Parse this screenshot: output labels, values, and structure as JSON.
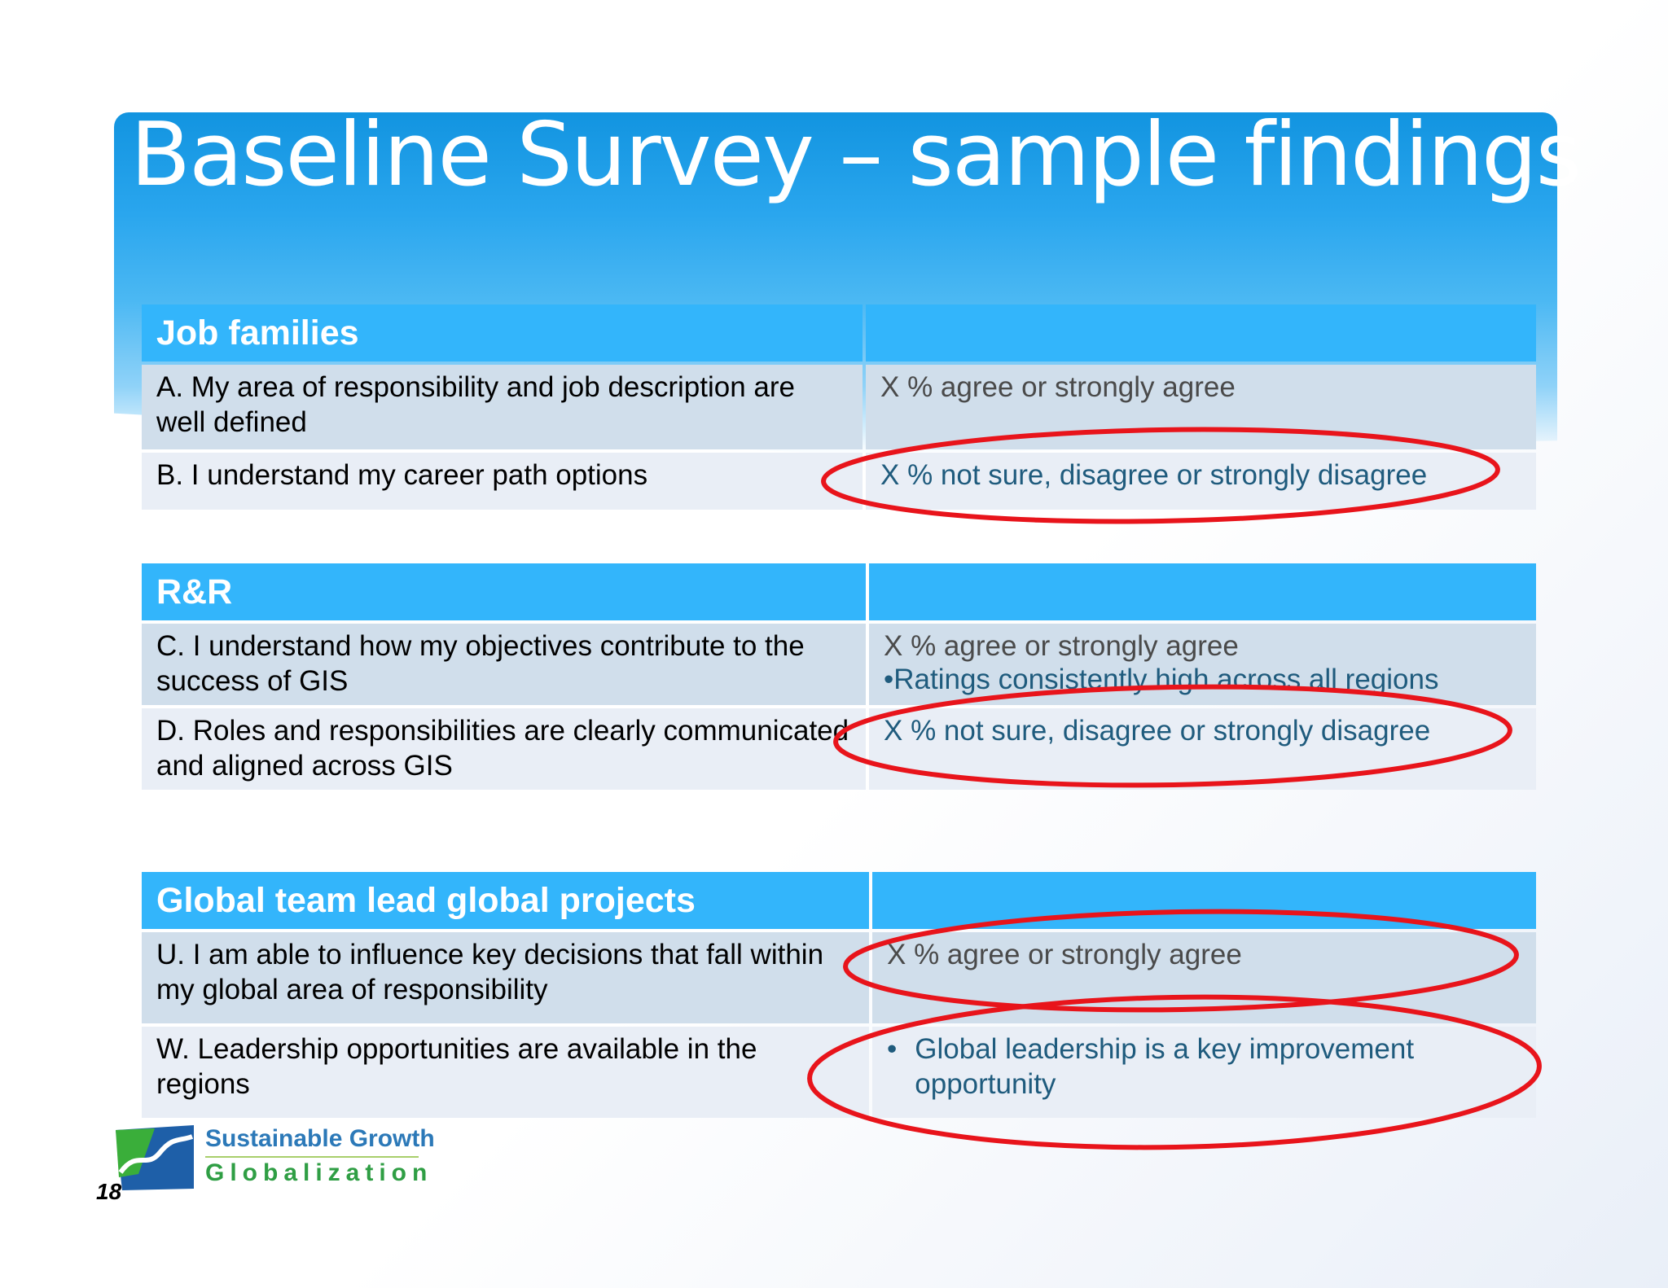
{
  "slide": {
    "title": "Baseline Survey – sample findings",
    "page_number": "18"
  },
  "tables": [
    {
      "header": "Job families",
      "rows": [
        {
          "question": "A. My area of responsibility and job description are well defined",
          "answer": "X % agree or strongly agree"
        },
        {
          "question": "B. I understand my career path options",
          "answer": "X % not sure, disagree or strongly disagree"
        }
      ]
    },
    {
      "header": "R&R",
      "rows": [
        {
          "question": "C. I understand how my objectives contribute to the success of GIS",
          "answer": "X % agree or strongly agree",
          "note": "•Ratings consistently high across all regions"
        },
        {
          "question": "D. Roles and responsibilities are clearly communicated and aligned across GIS",
          "answer": "X % not sure, disagree or strongly disagree"
        }
      ]
    },
    {
      "header": "Global team lead global projects",
      "rows": [
        {
          "question": "U. I am able to influence key decisions that fall within my global area of responsibility",
          "answer": "X % agree or strongly agree"
        },
        {
          "question": "W. Leadership opportunities are available in the regions",
          "bullet": "•",
          "answer": "Global leadership is a key improvement opportunity"
        }
      ]
    }
  ],
  "logo": {
    "line1": "Sustainable Growth",
    "line2": "Globalization"
  },
  "colors": {
    "header_blue": "#33b5fb",
    "row_dark": "#d0deeb",
    "row_light": "#e9eef6",
    "highlight_red": "#e8141b",
    "answer_teal": "#1f5b7d"
  }
}
